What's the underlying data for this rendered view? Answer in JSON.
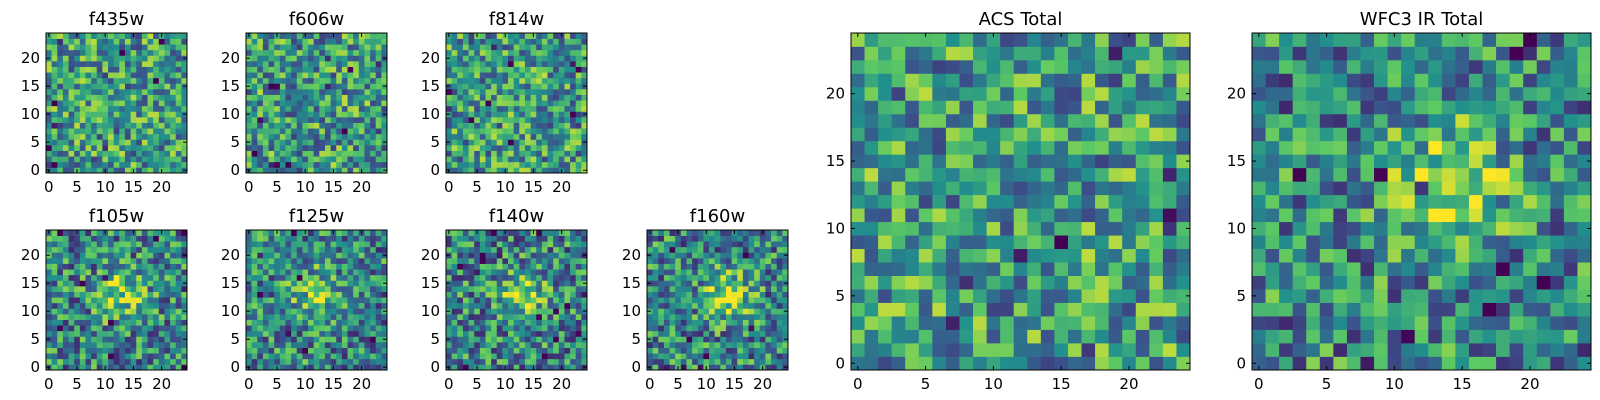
{
  "figure": {
    "colormap": [
      "#440154",
      "#3b528b",
      "#21908d",
      "#5dc963",
      "#fde725"
    ]
  },
  "chart_data": [
    {
      "type": "heatmap",
      "title": "f435w",
      "grid_size": 25,
      "xlim": [
        -0.5,
        24.5
      ],
      "ylim": [
        -0.5,
        24.5
      ],
      "xticks": [
        0,
        5,
        10,
        15,
        20
      ],
      "yticks": [
        0,
        5,
        10,
        15,
        20
      ],
      "value_range": [
        0,
        1
      ],
      "pattern": "uniform noise",
      "seed": 11
    },
    {
      "type": "heatmap",
      "title": "f606w",
      "grid_size": 25,
      "xlim": [
        -0.5,
        24.5
      ],
      "ylim": [
        -0.5,
        24.5
      ],
      "xticks": [
        0,
        5,
        10,
        15,
        20
      ],
      "yticks": [
        0,
        5,
        10,
        15,
        20
      ],
      "value_range": [
        0,
        1
      ],
      "pattern": "uniform noise",
      "seed": 23
    },
    {
      "type": "heatmap",
      "title": "f814w",
      "grid_size": 25,
      "xlim": [
        -0.5,
        24.5
      ],
      "ylim": [
        -0.5,
        24.5
      ],
      "xticks": [
        0,
        5,
        10,
        15,
        20
      ],
      "yticks": [
        0,
        5,
        10,
        15,
        20
      ],
      "value_range": [
        0,
        1
      ],
      "pattern": "uniform noise",
      "seed": 37
    },
    {
      "type": "heatmap",
      "title": "f105w",
      "grid_size": 25,
      "xlim": [
        -0.5,
        24.5
      ],
      "ylim": [
        -0.5,
        24.5
      ],
      "xticks": [
        0,
        5,
        10,
        15,
        20
      ],
      "yticks": [
        0,
        5,
        10,
        15,
        20
      ],
      "value_range": [
        0,
        1
      ],
      "pattern": "noise with bright central source",
      "source_center": [
        13,
        13
      ],
      "source_strength": 0.35,
      "seed": 41
    },
    {
      "type": "heatmap",
      "title": "f125w",
      "grid_size": 25,
      "xlim": [
        -0.5,
        24.5
      ],
      "ylim": [
        -0.5,
        24.5
      ],
      "xticks": [
        0,
        5,
        10,
        15,
        20
      ],
      "yticks": [
        0,
        5,
        10,
        15,
        20
      ],
      "value_range": [
        0,
        1
      ],
      "pattern": "noise with bright central source",
      "source_center": [
        12,
        13
      ],
      "source_strength": 0.3,
      "seed": 53
    },
    {
      "type": "heatmap",
      "title": "f140w",
      "grid_size": 25,
      "xlim": [
        -0.5,
        24.5
      ],
      "ylim": [
        -0.5,
        24.5
      ],
      "xticks": [
        0,
        5,
        10,
        15,
        20
      ],
      "yticks": [
        0,
        5,
        10,
        15,
        20
      ],
      "value_range": [
        0,
        1
      ],
      "pattern": "noise with bright central source",
      "source_center": [
        13,
        13
      ],
      "source_strength": 0.3,
      "seed": 67
    },
    {
      "type": "heatmap",
      "title": "f160w",
      "grid_size": 25,
      "xlim": [
        -0.5,
        24.5
      ],
      "ylim": [
        -0.5,
        24.5
      ],
      "xticks": [
        0,
        5,
        10,
        15,
        20
      ],
      "yticks": [
        0,
        5,
        10,
        15,
        20
      ],
      "value_range": [
        0,
        1
      ],
      "pattern": "noise with bright central source",
      "source_center": [
        14,
        13
      ],
      "source_strength": 0.35,
      "seed": 79
    },
    {
      "type": "heatmap",
      "title": "ACS Total",
      "grid_size": 25,
      "xlim": [
        -0.5,
        24.5
      ],
      "ylim": [
        -0.5,
        24.5
      ],
      "xticks": [
        0,
        5,
        10,
        15,
        20
      ],
      "yticks": [
        0,
        5,
        10,
        15,
        20
      ],
      "value_range": [
        0,
        1
      ],
      "pattern": "noise",
      "seed": 97
    },
    {
      "type": "heatmap",
      "title": "WFC3 IR Total",
      "grid_size": 25,
      "xlim": [
        -0.5,
        24.5
      ],
      "ylim": [
        -0.5,
        24.5
      ],
      "xticks": [
        0,
        5,
        10,
        15,
        20
      ],
      "yticks": [
        0,
        5,
        10,
        15,
        20
      ],
      "value_range": [
        0,
        1
      ],
      "pattern": "noise with bright central source",
      "source_center": [
        14,
        13
      ],
      "source_strength": 0.45,
      "seed": 113
    }
  ]
}
